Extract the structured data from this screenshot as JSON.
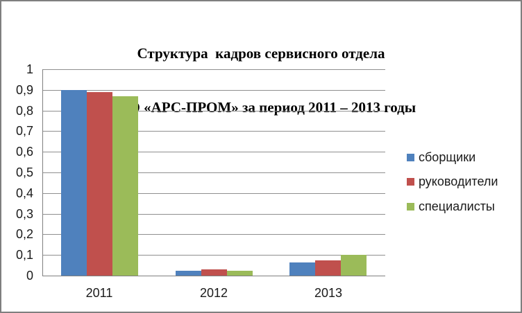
{
  "figure": {
    "background": "#ffffff",
    "border_color": "#7f7f7f"
  },
  "title": {
    "line1": "Структура  кадров сервисного отдела",
    "line2": "ООО «АРС-ПРОМ» за период 2011 – 2013 годы"
  },
  "chart_data": {
    "type": "bar",
    "title": "Структура кадров сервисного отдела ООО «АРС-ПРОМ» за период 2011 – 2013 годы",
    "categories": [
      "2011",
      "2012",
      "2013"
    ],
    "series": [
      {
        "name": "сборщики",
        "color": "#4F81BD",
        "values": [
          0.9,
          0.025,
          0.065
        ]
      },
      {
        "name": "руководители",
        "color": "#C0504D",
        "values": [
          0.89,
          0.03,
          0.075
        ]
      },
      {
        "name": "специалисты",
        "color": "#9BBB59",
        "values": [
          0.87,
          0.025,
          0.1
        ]
      }
    ],
    "xlabel": "",
    "ylabel": "",
    "ylim": [
      0,
      1
    ],
    "y_tick_step": 0.1,
    "y_tick_labels_bottom_up": [
      "0",
      "0,1",
      "0,2",
      "0,3",
      "0,4",
      "0,5",
      "0,6",
      "0,7",
      "0,8",
      "0,9",
      "1"
    ],
    "grid": true,
    "legend_position": "right",
    "bar_gap_width_percent": 150
  },
  "colors": {
    "gridline": "#8e8e8e",
    "axis": "#7f7f7f",
    "tick_text": "#1a1a1a",
    "title_text": "#000000"
  }
}
